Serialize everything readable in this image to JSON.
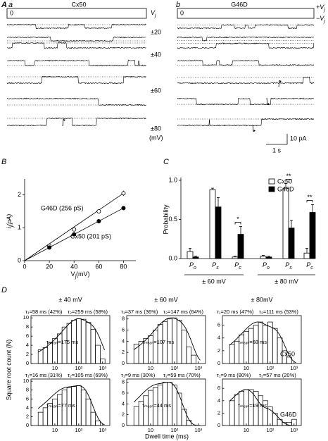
{
  "panel_a": {
    "letter": "A",
    "left": {
      "letter": "a",
      "title": "Cx50",
      "zero": "0",
      "vj": "V",
      "vj_sub": "j"
    },
    "right": {
      "letter": "b",
      "title": "G46D",
      "zero": "0",
      "plus_vj": "+V",
      "minus_vj": "−V",
      "vj_sub": "j"
    },
    "voltages": [
      "±20",
      "±40",
      "±60",
      "±80"
    ],
    "voltage_unit": "(mV)",
    "scale_time": "1 s",
    "scale_current": "10 pA"
  },
  "panel_b": {
    "type": "scatter",
    "letter": "B",
    "ylabel": {
      "symbol": "i",
      "sub": "j",
      "unit": "(pA)"
    },
    "xlabel": {
      "symbol": "V",
      "sub": "j",
      "unit": "(mV)"
    },
    "x": [
      20,
      40,
      60,
      80
    ],
    "series": [
      {
        "name": "G46D (256 pS)",
        "marker": "open",
        "values": [
          0.45,
          0.95,
          1.5,
          2.05
        ],
        "errors": [
          0.02,
          0.03,
          0.05,
          0.08
        ]
      },
      {
        "name": "Cx50 (201 pS)",
        "marker": "filled",
        "values": [
          0.4,
          0.8,
          1.2,
          1.6
        ]
      }
    ],
    "xlim": [
      0,
      90
    ],
    "xticks": [
      0,
      20,
      40,
      60,
      80
    ],
    "ylim": [
      0,
      2.4
    ],
    "yticks": [
      0,
      1,
      2
    ]
  },
  "panel_c": {
    "type": "bar",
    "letter": "C",
    "ylabel": "Probability",
    "category_symbol": "P",
    "category_subscripts": [
      "o",
      "s",
      "c",
      "o",
      "s",
      "c"
    ],
    "groups": [
      "± 60 mV",
      "± 80 mV"
    ],
    "series": [
      {
        "name": "Cx50",
        "color": "#ffffff",
        "values": [
          0.09,
          0.88,
          0.02,
          0.03,
          0.9,
          0.07
        ],
        "errors": [
          0.04,
          0.02,
          0.01,
          0.01,
          0.06,
          0.06
        ]
      },
      {
        "name": "G46D",
        "color": "#000000",
        "values": [
          0.02,
          0.66,
          0.31,
          0.02,
          0.39,
          0.59
        ],
        "errors": [
          0.01,
          0.12,
          0.1,
          0.01,
          0.1,
          0.1
        ]
      }
    ],
    "significance": [
      null,
      null,
      "*",
      null,
      "**",
      "**"
    ],
    "ylim": [
      0,
      1.0
    ],
    "yticks": [
      {
        "value": 0,
        "label": "0.0"
      },
      0.5,
      {
        "value": 1.0,
        "label": "1.0"
      }
    ]
  },
  "panel_d": {
    "type": "histogram",
    "letter": "D",
    "ylabel": "Square root count (N)",
    "xlabel": "Dwell time (ms)",
    "columns": [
      "± 40 mV",
      "± 60 mV",
      "± 80mV"
    ],
    "rows": [
      "Cx50",
      "G46D"
    ],
    "bins": [
      2,
      3.2,
      5,
      8,
      12.6,
      20,
      32,
      50,
      80,
      126,
      200,
      320,
      500,
      800,
      1260
    ],
    "xlim": [
      1,
      2000
    ],
    "xticks": [
      10,
      {
        "value": 100,
        "label": "10²"
      },
      {
        "value": 1000,
        "label": "10³"
      }
    ],
    "panels": [
      {
        "counts": [
          3,
          3.5,
          4.5,
          5.5,
          6.5,
          8,
          8.8,
          9.5,
          9.8,
          9.7,
          9,
          7.5,
          4,
          1
        ],
        "ylim": [
          0,
          10.5
        ],
        "yticks": [
          0,
          2,
          4,
          6,
          8,
          10
        ],
        "fits": [
          {
            "value": 58,
            "weight": 42,
            "label": "τ₁=58 ms (42%)"
          },
          {
            "value": 259,
            "weight": 58,
            "label": "τ₂=259 ms (58%)"
          }
        ],
        "mean_label": "τₘₑₐₙ=175 ms"
      },
      {
        "counts": [
          3.5,
          4,
          4.5,
          5,
          6,
          7,
          7.5,
          8,
          8.2,
          7.8,
          6,
          3,
          1.5,
          0
        ],
        "ylim": [
          0,
          8.6
        ],
        "yticks": [
          0,
          2,
          4,
          6,
          8
        ],
        "fits": [
          {
            "value": 37,
            "weight": 36,
            "label": "τ₁=37 ms (36%)"
          },
          {
            "value": 147,
            "weight": 64,
            "label": "τ₂=147 ms (64%)"
          }
        ],
        "mean_label": "τₘₑₐₙ=107 ms"
      },
      {
        "counts": [
          3,
          3.5,
          4.5,
          5,
          5.5,
          6,
          6.5,
          6,
          6.5,
          5.5,
          4,
          2,
          1,
          0
        ],
        "ylim": [
          0,
          7.5
        ],
        "yticks": [
          0,
          2,
          4,
          6
        ],
        "fits": [
          {
            "value": 20,
            "weight": 47,
            "label": "τ₁=20 ms (47%)"
          },
          {
            "value": 111,
            "weight": 53,
            "label": "τ₂=111 ms (53%)"
          }
        ],
        "mean_label": "τₘₑₐₙ=68 ms"
      },
      {
        "counts": [
          3,
          4,
          5,
          6,
          7,
          8,
          8.5,
          8.8,
          9,
          8,
          6,
          3,
          1,
          0
        ],
        "ylim": [
          0,
          10.5
        ],
        "yticks": [
          0,
          2,
          4,
          6,
          8,
          10
        ],
        "fits": [
          {
            "value": 16,
            "weight": 31,
            "label": "τ₁=16 ms (31%)"
          },
          {
            "value": 105,
            "weight": 69,
            "label": "τ₂=105 ms (69%)"
          }
        ],
        "mean_label": "τₘₑₐₙ=77 ms"
      },
      {
        "counts": [
          3.5,
          4.5,
          5.5,
          6.5,
          7,
          7.5,
          8,
          8,
          7.5,
          6,
          3,
          1,
          0,
          0
        ],
        "ylim": [
          0,
          8.6
        ],
        "yticks": [
          0,
          2,
          4,
          6,
          8
        ],
        "fits": [
          {
            "value": 9,
            "weight": 30,
            "label": "τ₁=9 ms (30%)"
          },
          {
            "value": 59,
            "weight": 70,
            "label": "τ₂=59 ms (70%)"
          }
        ],
        "mean_label": "τₘₑₐₙ=44 ms"
      },
      {
        "counts": [
          4,
          5,
          5.5,
          5.8,
          5.8,
          5.5,
          4.8,
          4,
          3,
          2,
          1,
          0.5,
          0.5,
          1
        ],
        "ylim": [
          0,
          7.5
        ],
        "yticks": [
          0,
          2,
          4,
          6
        ],
        "fits": [
          {
            "value": 9,
            "weight": 80,
            "label": "τ₁=9 ms (80%)"
          },
          {
            "value": 57,
            "weight": 20,
            "label": "τ₂=57 ms (20%)"
          }
        ],
        "mean_label": "τₘₑₐₙ=19 ms"
      }
    ]
  }
}
